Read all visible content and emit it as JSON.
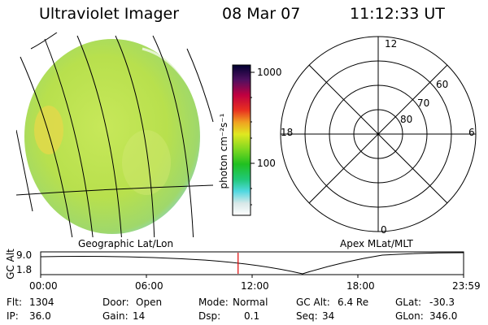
{
  "header": {
    "instrument": "Ultraviolet Imager",
    "date": "08 Mar 07",
    "time": "11:12:33 UT"
  },
  "colorbar": {
    "unit_label": "photon cm⁻²s⁻¹",
    "ticks": [
      "1000",
      "100"
    ]
  },
  "panels": {
    "left_label": "Geographic Lat/Lon",
    "right_label": "Apex MLat/MLT"
  },
  "polar": {
    "mlt_labels": {
      "top": "12",
      "right": "6",
      "bottom": "0",
      "left": "18"
    },
    "lat_labels": [
      "60",
      "70",
      "80"
    ]
  },
  "altitude_plot": {
    "ylabel": "GC Alt",
    "yticks": [
      "9.0",
      "1.8"
    ],
    "xticks": [
      "00:00",
      "06:00",
      "12:00",
      "18:00",
      "23:59"
    ],
    "current_time_fraction": 0.4668,
    "marker_color": "#e00000"
  },
  "info": {
    "row1": [
      {
        "label": "Flt:",
        "value": "1304"
      },
      {
        "label": "Door:",
        "value": "Open"
      },
      {
        "label": "Mode:",
        "value": "Normal"
      },
      {
        "label": "GC Alt:",
        "value": "6.4 Re"
      },
      {
        "label": "GLat:",
        "value": "-30.3"
      }
    ],
    "row2": [
      {
        "label": "IP:",
        "value": "36.0"
      },
      {
        "label": "Gain:",
        "value": "14"
      },
      {
        "label": "Dsp:",
        "value": "0.1"
      },
      {
        "label": "Seq:",
        "value": "34"
      },
      {
        "label": "GLon:",
        "value": "346.0"
      }
    ]
  }
}
